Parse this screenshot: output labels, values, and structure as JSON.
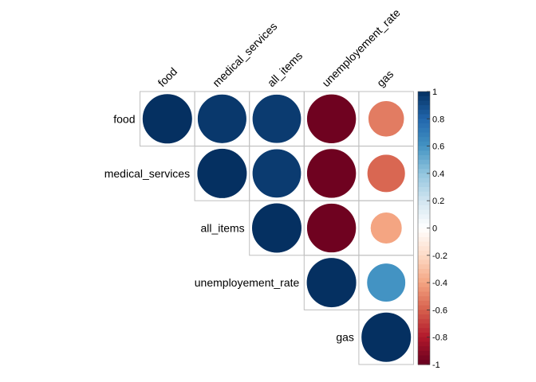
{
  "chart_data": {
    "type": "heatmap",
    "style": "corrplot-upper-circles",
    "variables": [
      "food",
      "medical_services",
      "all_items",
      "unemployement_rate",
      "gas"
    ],
    "matrix": [
      [
        1.0,
        0.97,
        0.96,
        -0.98,
        -0.52
      ],
      [
        0.97,
        1.0,
        0.96,
        -0.98,
        -0.58
      ],
      [
        0.96,
        0.96,
        1.0,
        -0.98,
        -0.4
      ],
      [
        -0.98,
        -0.98,
        -0.98,
        1.0,
        0.6
      ],
      [
        -0.52,
        -0.58,
        -0.4,
        0.6,
        1.0
      ]
    ],
    "show": "upper-triangle",
    "colorbar": {
      "ticks": [
        "1",
        "0.8",
        "0.6",
        "0.4",
        "0.2",
        "0",
        "-0.2",
        "-0.4",
        "-0.6",
        "-0.8",
        "-1"
      ],
      "range": [
        -1,
        1
      ],
      "colors": [
        "#67001f",
        "#b2182b",
        "#d6604d",
        "#f4a582",
        "#fddbc7",
        "#ffffff",
        "#d1e5f0",
        "#92c5de",
        "#4393c3",
        "#2166ac",
        "#053061"
      ]
    },
    "grid": true
  }
}
